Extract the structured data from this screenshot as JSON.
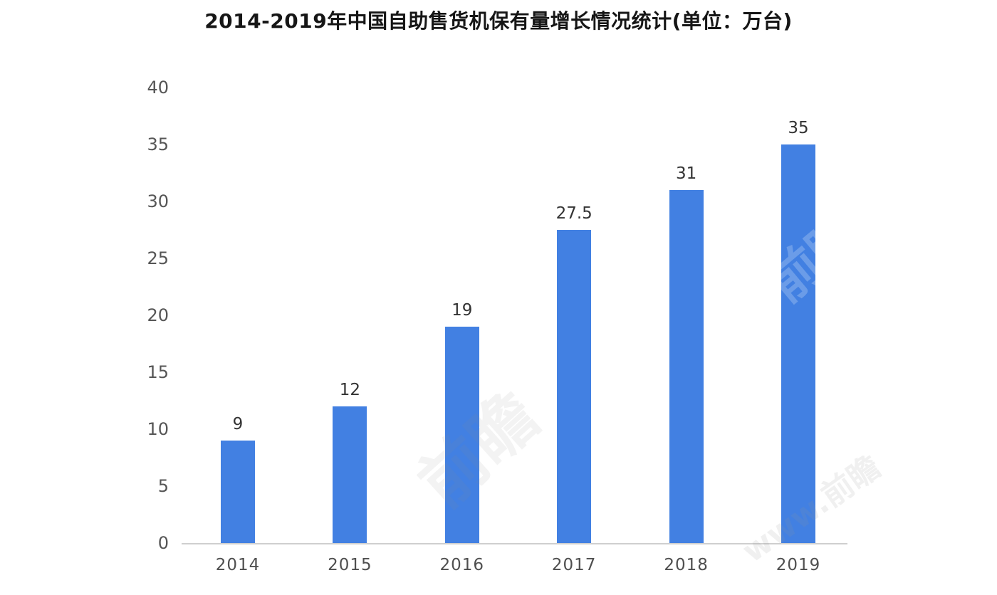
{
  "chart_data": {
    "type": "bar",
    "title": "2014-2019年中国自助售货机保有量增长情况统计(单位：万台)",
    "categories": [
      "2014",
      "2015",
      "2016",
      "2017",
      "2018",
      "2019"
    ],
    "values": [
      9,
      12,
      19,
      27.5,
      31,
      35
    ],
    "value_labels": [
      "9",
      "12",
      "19",
      "27.5",
      "31",
      "35"
    ],
    "xlabel": "",
    "ylabel": "",
    "ylim": [
      0,
      40
    ],
    "y_ticks": [
      0,
      5,
      10,
      15,
      20,
      25,
      30,
      35,
      40
    ],
    "grid": false,
    "legend_position": "none",
    "bar_color": "#4280E2",
    "axis_line_color": "#cfcfcf",
    "tick_label_color": "#555555",
    "value_label_color": "#333333",
    "title_color": "#161616",
    "background_color": "#ffffff"
  },
  "watermark": {
    "logo_text": "前瞻",
    "url_text": "www.前瞻"
  }
}
